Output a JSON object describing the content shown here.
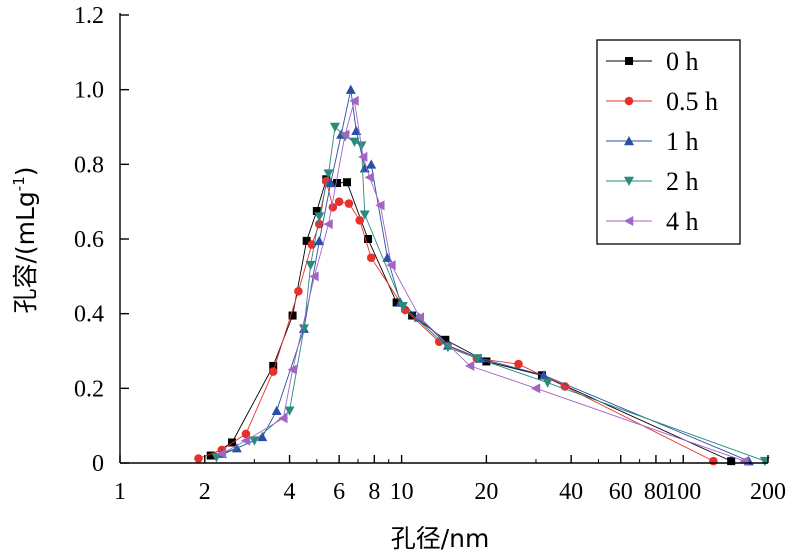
{
  "chart_data": {
    "type": "line",
    "xlabel": "孔径/nm",
    "ylabel_main": "孔容/(mLg",
    "ylabel_sup": "-1",
    "ylabel_close": ")",
    "x_scale": "log",
    "xlim": [
      1,
      200
    ],
    "ylim": [
      0,
      1.2
    ],
    "grid": false,
    "legend_position": "top-right",
    "x_ticks": [
      1,
      2,
      4,
      6,
      8,
      10,
      20,
      40,
      60,
      80,
      100,
      200
    ],
    "x_tick_labels": [
      "1",
      "2",
      "4",
      "6",
      "8",
      "10",
      "20",
      "40",
      "60",
      "80",
      "100",
      "200"
    ],
    "y_ticks": [
      0,
      0.2,
      0.4,
      0.6,
      0.8,
      1.0,
      1.2
    ],
    "y_tick_labels": [
      "0",
      "0.2",
      "0.4",
      "0.6",
      "0.8",
      "1.0",
      "1.2"
    ],
    "series": [
      {
        "name": "0 h",
        "color": "#000000",
        "marker": "square",
        "points": [
          [
            2.1,
            0.02
          ],
          [
            2.5,
            0.055
          ],
          [
            3.5,
            0.26
          ],
          [
            4.1,
            0.395
          ],
          [
            4.6,
            0.595
          ],
          [
            5.0,
            0.675
          ],
          [
            5.4,
            0.76
          ],
          [
            5.9,
            0.75
          ],
          [
            6.4,
            0.752
          ],
          [
            7.6,
            0.6
          ],
          [
            9.6,
            0.43
          ],
          [
            10.9,
            0.395
          ],
          [
            14.3,
            0.33
          ],
          [
            20,
            0.272
          ],
          [
            31.5,
            0.235
          ],
          [
            148,
            0.005
          ]
        ]
      },
      {
        "name": "0.5 h",
        "color": "#e8302a",
        "marker": "circle",
        "points": [
          [
            1.9,
            0.012
          ],
          [
            2.3,
            0.035
          ],
          [
            2.8,
            0.078
          ],
          [
            3.5,
            0.245
          ],
          [
            4.3,
            0.46
          ],
          [
            4.8,
            0.585
          ],
          [
            5.1,
            0.64
          ],
          [
            5.4,
            0.755
          ],
          [
            5.7,
            0.685
          ],
          [
            6.0,
            0.7
          ],
          [
            6.5,
            0.695
          ],
          [
            7.1,
            0.65
          ],
          [
            7.8,
            0.55
          ],
          [
            10.3,
            0.41
          ],
          [
            13.6,
            0.325
          ],
          [
            18.5,
            0.28
          ],
          [
            26,
            0.265
          ],
          [
            38,
            0.205
          ],
          [
            128,
            0.005
          ]
        ]
      },
      {
        "name": "1 h",
        "color": "#2b4fa6",
        "marker": "triangle-up",
        "points": [
          [
            2.3,
            0.025
          ],
          [
            2.6,
            0.04
          ],
          [
            3.2,
            0.07
          ],
          [
            3.6,
            0.14
          ],
          [
            4.5,
            0.36
          ],
          [
            5.1,
            0.595
          ],
          [
            5.6,
            0.75
          ],
          [
            6.1,
            0.88
          ],
          [
            6.6,
            1.0
          ],
          [
            6.9,
            0.89
          ],
          [
            7.4,
            0.79
          ],
          [
            7.8,
            0.8
          ],
          [
            8.9,
            0.55
          ],
          [
            9.9,
            0.43
          ],
          [
            11.5,
            0.39
          ],
          [
            14.6,
            0.315
          ],
          [
            19,
            0.28
          ],
          [
            32,
            0.235
          ],
          [
            171,
            0.005
          ]
        ]
      },
      {
        "name": "2 h",
        "color": "#2a8a7c",
        "marker": "triangle-down",
        "points": [
          [
            2.2,
            0.015
          ],
          [
            3.0,
            0.06
          ],
          [
            4.0,
            0.14
          ],
          [
            4.5,
            0.36
          ],
          [
            4.75,
            0.53
          ],
          [
            5.1,
            0.66
          ],
          [
            5.5,
            0.775
          ],
          [
            5.8,
            0.9
          ],
          [
            6.3,
            0.875
          ],
          [
            6.8,
            0.86
          ],
          [
            7.2,
            0.85
          ],
          [
            7.4,
            0.665
          ],
          [
            10.1,
            0.42
          ],
          [
            14.6,
            0.31
          ],
          [
            18.6,
            0.28
          ],
          [
            33,
            0.215
          ],
          [
            195,
            0.005
          ]
        ]
      },
      {
        "name": "4 h",
        "color": "#a265c4",
        "marker": "triangle-left",
        "points": [
          [
            2.3,
            0.025
          ],
          [
            2.8,
            0.06
          ],
          [
            3.8,
            0.12
          ],
          [
            4.1,
            0.25
          ],
          [
            4.9,
            0.5
          ],
          [
            5.5,
            0.64
          ],
          [
            6.3,
            0.88
          ],
          [
            6.8,
            0.97
          ],
          [
            7.3,
            0.82
          ],
          [
            7.7,
            0.765
          ],
          [
            8.4,
            0.69
          ],
          [
            9.2,
            0.53
          ],
          [
            11.6,
            0.39
          ],
          [
            17.5,
            0.26
          ],
          [
            30,
            0.2
          ],
          [
            165,
            0.005
          ]
        ]
      }
    ]
  }
}
